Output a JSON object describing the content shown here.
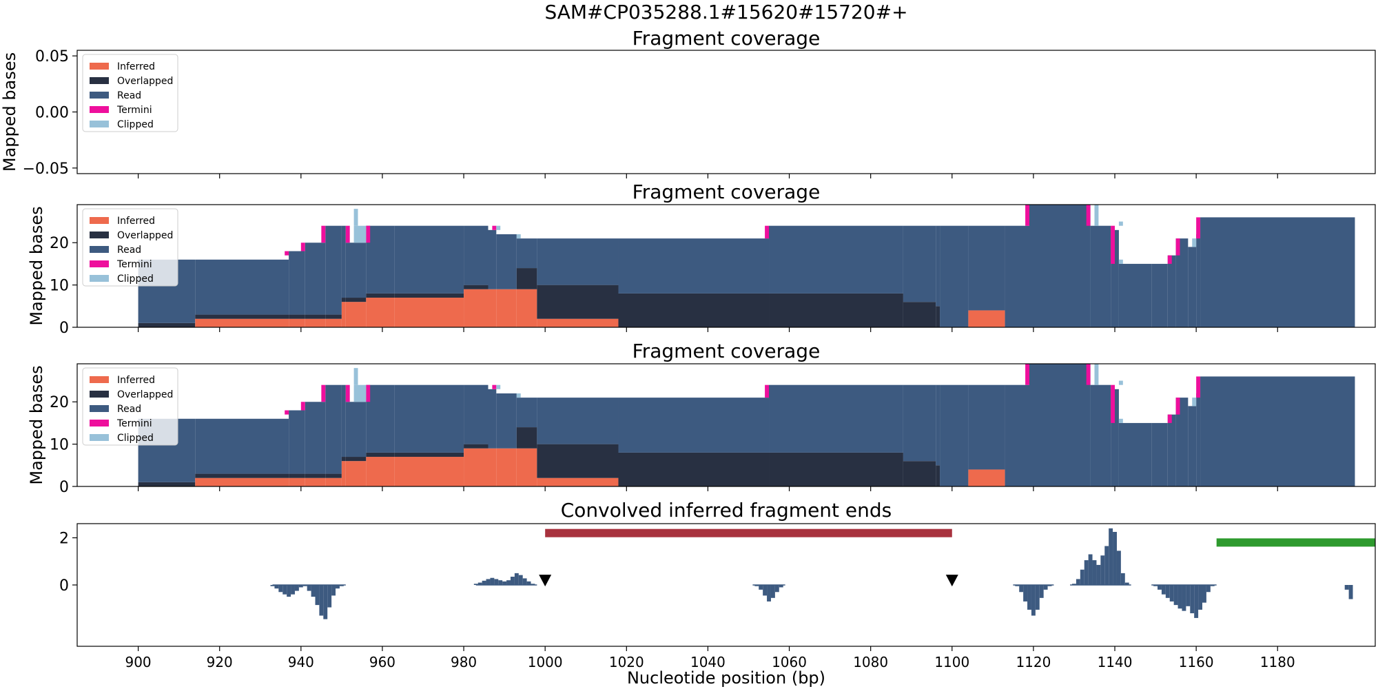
{
  "figure": {
    "suptitle": "SAM#CP035288.1#15620#15720#+",
    "xlabel": "Nucleotide position (bp)"
  },
  "colors": {
    "Inferred": "#ee6a4d",
    "Overlapped": "#283042",
    "Read": "#3d5a80",
    "Termini": "#ee0f9c",
    "Clipped": "#98c1d9",
    "hist": "#3d5a80",
    "red_bar": "#a8323e",
    "green_bar": "#2e9a2e",
    "marker": "#000000"
  },
  "chart_data": [
    {
      "type": "area",
      "title": "Fragment coverage",
      "ylabel": "Mapped bases",
      "xlim": [
        885,
        1204
      ],
      "ylim": [
        -0.055,
        0.055
      ],
      "yticks": [
        0.05,
        0.0,
        -0.05
      ],
      "ytick_labels": [
        "0.05",
        "0.00",
        "−0.05"
      ],
      "legend": {
        "position": "upper-left",
        "entries": [
          "Inferred",
          "Overlapped",
          "Read",
          "Termini",
          "Clipped"
        ]
      },
      "segments": []
    },
    {
      "type": "area",
      "title": "Fragment coverage",
      "ylabel": "Mapped bases",
      "xlim": [
        885,
        1204
      ],
      "ylim": [
        0,
        29
      ],
      "yticks": [
        0,
        10,
        20
      ],
      "ytick_labels": [
        "0",
        "10",
        "20"
      ],
      "legend": {
        "position": "upper-left",
        "entries": [
          "Inferred",
          "Overlapped",
          "Read",
          "Termini",
          "Clipped"
        ]
      },
      "segments": [
        [
          900,
          914,
          0,
          1,
          16
        ],
        [
          914,
          937,
          2,
          3,
          16
        ],
        [
          937,
          941,
          2,
          3,
          18
        ],
        [
          941,
          946,
          2,
          3,
          20
        ],
        [
          946,
          950,
          2,
          3,
          24
        ],
        [
          950,
          951,
          6,
          7,
          24
        ],
        [
          951,
          956,
          6,
          7,
          20
        ],
        [
          956,
          963,
          7,
          8,
          24
        ],
        [
          963,
          980,
          7,
          8,
          24
        ],
        [
          980,
          986,
          9,
          10,
          24
        ],
        [
          986,
          988,
          9,
          9,
          23
        ],
        [
          988,
          993,
          9,
          9,
          22
        ],
        [
          993,
          998,
          9,
          14,
          21
        ],
        [
          998,
          1018,
          2,
          10,
          21
        ],
        [
          1018,
          1055,
          0,
          8,
          21
        ],
        [
          1055,
          1088,
          0,
          8,
          24
        ],
        [
          1088,
          1096,
          0,
          6,
          24
        ],
        [
          1096,
          1097,
          0,
          5,
          24
        ],
        [
          1097,
          1104,
          0,
          0,
          24
        ],
        [
          1104,
          1113,
          4,
          4,
          24
        ],
        [
          1113,
          1119,
          0,
          0,
          24
        ],
        [
          1119,
          1134,
          0,
          0,
          29
        ],
        [
          1134,
          1139,
          0,
          0,
          24
        ],
        [
          1139,
          1141,
          0,
          0,
          23
        ],
        [
          1141,
          1149,
          0,
          0,
          15
        ],
        [
          1149,
          1153,
          0,
          0,
          15
        ],
        [
          1153,
          1155,
          0,
          0,
          17
        ],
        [
          1155,
          1158,
          0,
          0,
          21
        ],
        [
          1158,
          1160,
          0,
          0,
          19
        ],
        [
          1160,
          1161,
          0,
          0,
          22
        ],
        [
          1161,
          1199,
          0,
          0,
          26
        ]
      ],
      "termini": [
        [
          936,
          937,
          17,
          18
        ],
        [
          940,
          941,
          18,
          20
        ],
        [
          945,
          946,
          20,
          24
        ],
        [
          951,
          952,
          20,
          24
        ],
        [
          956,
          957,
          20,
          24
        ],
        [
          987,
          988,
          23,
          24
        ],
        [
          1054,
          1055,
          21,
          24
        ],
        [
          1118,
          1119,
          24,
          29
        ],
        [
          1133,
          1134,
          24,
          29
        ],
        [
          1139,
          1140,
          15,
          24
        ],
        [
          1153,
          1154,
          15,
          17
        ],
        [
          1155,
          1156,
          17,
          21
        ],
        [
          1160,
          1161,
          21,
          26
        ]
      ],
      "clipped": [
        [
          953,
          954,
          24,
          28
        ],
        [
          953,
          956,
          20,
          24
        ],
        [
          988,
          989,
          23,
          24
        ],
        [
          993,
          994,
          21,
          22
        ],
        [
          1135,
          1136,
          24,
          29
        ],
        [
          1141,
          1142,
          15,
          16
        ],
        [
          1141,
          1142,
          24,
          25
        ],
        [
          1159,
          1160,
          19,
          21
        ]
      ]
    },
    {
      "type": "area",
      "title": "Fragment coverage",
      "ylabel": "Mapped bases",
      "xlim": [
        885,
        1204
      ],
      "ylim": [
        0,
        29
      ],
      "yticks": [
        0,
        10,
        20
      ],
      "ytick_labels": [
        "0",
        "10",
        "20"
      ],
      "legend": {
        "position": "upper-left",
        "entries": [
          "Inferred",
          "Overlapped",
          "Read",
          "Termini",
          "Clipped"
        ]
      },
      "segments": [
        [
          900,
          914,
          0,
          1,
          16
        ],
        [
          914,
          937,
          2,
          3,
          16
        ],
        [
          937,
          941,
          2,
          3,
          18
        ],
        [
          941,
          946,
          2,
          3,
          20
        ],
        [
          946,
          950,
          2,
          3,
          24
        ],
        [
          950,
          951,
          6,
          7,
          24
        ],
        [
          951,
          956,
          6,
          7,
          20
        ],
        [
          956,
          963,
          7,
          8,
          24
        ],
        [
          963,
          980,
          7,
          8,
          24
        ],
        [
          980,
          986,
          9,
          10,
          24
        ],
        [
          986,
          988,
          9,
          9,
          23
        ],
        [
          988,
          993,
          9,
          9,
          22
        ],
        [
          993,
          998,
          9,
          14,
          21
        ],
        [
          998,
          1018,
          2,
          10,
          21
        ],
        [
          1018,
          1055,
          0,
          8,
          21
        ],
        [
          1055,
          1088,
          0,
          8,
          24
        ],
        [
          1088,
          1096,
          0,
          6,
          24
        ],
        [
          1096,
          1097,
          0,
          5,
          24
        ],
        [
          1097,
          1104,
          0,
          0,
          24
        ],
        [
          1104,
          1113,
          4,
          4,
          24
        ],
        [
          1113,
          1119,
          0,
          0,
          24
        ],
        [
          1119,
          1134,
          0,
          0,
          29
        ],
        [
          1134,
          1139,
          0,
          0,
          24
        ],
        [
          1139,
          1141,
          0,
          0,
          23
        ],
        [
          1141,
          1149,
          0,
          0,
          15
        ],
        [
          1149,
          1153,
          0,
          0,
          15
        ],
        [
          1153,
          1155,
          0,
          0,
          17
        ],
        [
          1155,
          1158,
          0,
          0,
          21
        ],
        [
          1158,
          1160,
          0,
          0,
          19
        ],
        [
          1160,
          1161,
          0,
          0,
          22
        ],
        [
          1161,
          1199,
          0,
          0,
          26
        ]
      ],
      "termini": [
        [
          936,
          937,
          17,
          18
        ],
        [
          940,
          941,
          18,
          20
        ],
        [
          945,
          946,
          20,
          24
        ],
        [
          951,
          952,
          20,
          24
        ],
        [
          956,
          957,
          20,
          24
        ],
        [
          987,
          988,
          23,
          24
        ],
        [
          1054,
          1055,
          21,
          24
        ],
        [
          1118,
          1119,
          24,
          29
        ],
        [
          1133,
          1134,
          24,
          29
        ],
        [
          1139,
          1140,
          15,
          24
        ],
        [
          1153,
          1154,
          15,
          17
        ],
        [
          1155,
          1156,
          17,
          21
        ],
        [
          1160,
          1161,
          21,
          26
        ]
      ],
      "clipped": [
        [
          953,
          954,
          24,
          28
        ],
        [
          953,
          956,
          20,
          24
        ],
        [
          988,
          989,
          23,
          24
        ],
        [
          993,
          994,
          21,
          22
        ],
        [
          1135,
          1136,
          24,
          29
        ],
        [
          1141,
          1142,
          15,
          16
        ],
        [
          1141,
          1142,
          24,
          25
        ],
        [
          1159,
          1160,
          19,
          21
        ]
      ]
    },
    {
      "type": "bar",
      "title": "Convolved inferred fragment ends",
      "xlim": [
        885,
        1204
      ],
      "ylim": [
        -2.6,
        2.6
      ],
      "yticks": [
        2,
        0
      ],
      "ytick_labels": [
        "2",
        "0"
      ],
      "xticks": [
        900,
        920,
        940,
        960,
        980,
        1000,
        1020,
        1040,
        1060,
        1080,
        1100,
        1120,
        1140,
        1160,
        1180
      ],
      "xtick_labels": [
        "900",
        "920",
        "940",
        "960",
        "980",
        "1000",
        "1020",
        "1040",
        "1060",
        "1080",
        "1100",
        "1120",
        "1140",
        "1160",
        "1180"
      ],
      "bars": [
        [
          933,
          -0.05
        ],
        [
          934,
          -0.15
        ],
        [
          935,
          -0.3
        ],
        [
          936,
          -0.4
        ],
        [
          937,
          -0.5
        ],
        [
          938,
          -0.4
        ],
        [
          939,
          -0.25
        ],
        [
          940,
          -0.1
        ],
        [
          941,
          -0.05
        ],
        [
          942,
          -0.25
        ],
        [
          943,
          -0.5
        ],
        [
          944,
          -0.85
        ],
        [
          945,
          -1.3
        ],
        [
          946,
          -1.45
        ],
        [
          947,
          -0.95
        ],
        [
          948,
          -0.45
        ],
        [
          949,
          -0.15
        ],
        [
          950,
          -0.05
        ],
        [
          983,
          0.05
        ],
        [
          984,
          0.1
        ],
        [
          985,
          0.18
        ],
        [
          986,
          0.25
        ],
        [
          987,
          0.3
        ],
        [
          988,
          0.25
        ],
        [
          989,
          0.2
        ],
        [
          990,
          0.15
        ],
        [
          991,
          0.2
        ],
        [
          992,
          0.35
        ],
        [
          993,
          0.5
        ],
        [
          994,
          0.42
        ],
        [
          995,
          0.28
        ],
        [
          996,
          0.15
        ],
        [
          997,
          0.05
        ],
        [
          1052,
          -0.05
        ],
        [
          1053,
          -0.2
        ],
        [
          1054,
          -0.45
        ],
        [
          1055,
          -0.7
        ],
        [
          1056,
          -0.55
        ],
        [
          1057,
          -0.3
        ],
        [
          1058,
          -0.1
        ],
        [
          1116,
          -0.05
        ],
        [
          1117,
          -0.3
        ],
        [
          1118,
          -0.7
        ],
        [
          1119,
          -1.05
        ],
        [
          1120,
          -1.3
        ],
        [
          1121,
          -1.05
        ],
        [
          1122,
          -0.55
        ],
        [
          1123,
          -0.2
        ],
        [
          1124,
          -0.05
        ],
        [
          1130,
          0.05
        ],
        [
          1131,
          0.25
        ],
        [
          1132,
          0.65
        ],
        [
          1133,
          1.05
        ],
        [
          1134,
          1.3
        ],
        [
          1135,
          1.05
        ],
        [
          1136,
          0.85
        ],
        [
          1137,
          1.25
        ],
        [
          1138,
          1.65
        ],
        [
          1139,
          2.4
        ],
        [
          1140,
          2.25
        ],
        [
          1141,
          1.45
        ],
        [
          1142,
          0.5
        ],
        [
          1143,
          0.1
        ],
        [
          1150,
          -0.05
        ],
        [
          1151,
          -0.2
        ],
        [
          1152,
          -0.4
        ],
        [
          1153,
          -0.55
        ],
        [
          1154,
          -0.7
        ],
        [
          1155,
          -0.85
        ],
        [
          1156,
          -1.0
        ],
        [
          1157,
          -1.1
        ],
        [
          1158,
          -0.9
        ],
        [
          1159,
          -1.2
        ],
        [
          1160,
          -1.4
        ],
        [
          1161,
          -1.05
        ],
        [
          1162,
          -0.75
        ],
        [
          1163,
          -0.3
        ],
        [
          1164,
          -0.05
        ],
        [
          1197,
          -0.2
        ],
        [
          1198,
          -0.6
        ]
      ],
      "intervals": [
        {
          "x0": 1000,
          "x1": 1100,
          "y": 2.2,
          "color": "red_bar"
        },
        {
          "x0": 1165,
          "x1": 1204,
          "y": 1.8,
          "color": "green_bar"
        }
      ],
      "markers": [
        {
          "x": 1000,
          "y": 0.2
        },
        {
          "x": 1100,
          "y": 0.2
        }
      ]
    }
  ]
}
